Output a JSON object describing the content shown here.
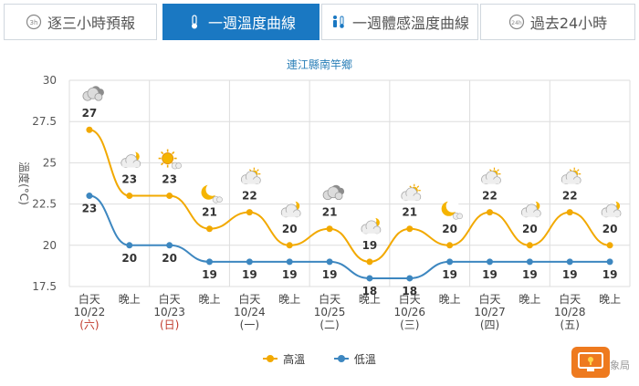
{
  "tabs": [
    {
      "label": "逐三小時預報",
      "icon": "3h-clock-icon",
      "active": false
    },
    {
      "label": "一週溫度曲線",
      "icon": "thermometer-icon",
      "active": true
    },
    {
      "label": "一週體感溫度曲線",
      "icon": "body-temperature-icon",
      "active": false
    },
    {
      "label": "過去24小時",
      "icon": "24h-clock-icon",
      "active": false
    }
  ],
  "location": "連江縣南竿鄉",
  "colors": {
    "high": "#f2a900",
    "low": "#3d87c0",
    "tab_active": "#1a78c2",
    "grid": "#dddddd",
    "sunday": "#c0392b",
    "saturday": "#c0392b"
  },
  "chart_data": {
    "type": "line",
    "ylabel": "溫度(°C)",
    "ylim": [
      17.5,
      30
    ],
    "yticks": [
      "17.5",
      "20",
      "22.5",
      "25",
      "27.5",
      "30"
    ],
    "grid": true,
    "legend_position": "bottom",
    "categories": [
      {
        "period": "白天",
        "date": "10/22",
        "weekday": "(六)"
      },
      {
        "period": "晚上",
        "date": "",
        "weekday": ""
      },
      {
        "period": "白天",
        "date": "10/23",
        "weekday": "(日)"
      },
      {
        "period": "晚上",
        "date": "",
        "weekday": ""
      },
      {
        "period": "白天",
        "date": "10/24",
        "weekday": "(一)"
      },
      {
        "period": "晚上",
        "date": "",
        "weekday": ""
      },
      {
        "period": "白天",
        "date": "10/25",
        "weekday": "(二)"
      },
      {
        "period": "晚上",
        "date": "",
        "weekday": ""
      },
      {
        "period": "白天",
        "date": "10/26",
        "weekday": "(三)"
      },
      {
        "period": "晚上",
        "date": "",
        "weekday": ""
      },
      {
        "period": "白天",
        "date": "10/27",
        "weekday": "(四)"
      },
      {
        "period": "晚上",
        "date": "",
        "weekday": ""
      },
      {
        "period": "白天",
        "date": "10/28",
        "weekday": "(五)"
      },
      {
        "period": "晚上",
        "date": "",
        "weekday": ""
      }
    ],
    "series": [
      {
        "name": "高溫",
        "values": [
          27,
          23,
          23,
          21,
          22,
          20,
          21,
          19,
          21,
          20,
          22,
          20,
          22,
          20
        ]
      },
      {
        "name": "低溫",
        "values": [
          23,
          20,
          20,
          19,
          19,
          19,
          19,
          18,
          18,
          19,
          19,
          19,
          19,
          19
        ]
      }
    ],
    "weather_icons": [
      "cloudy-icon",
      "partly-cloudy-night-icon",
      "sunny-cloudy-icon",
      "moon-cloud-icon",
      "partly-cloudy-day-icon",
      "partly-cloudy-night-icon",
      "cloudy-icon",
      "partly-cloudy-night-icon",
      "partly-cloudy-day-icon",
      "moon-cloud-icon",
      "partly-cloudy-day-icon",
      "partly-cloudy-night-icon",
      "partly-cloudy-day-icon",
      "partly-cloudy-night-icon"
    ]
  },
  "footer": {
    "source_text": "象局"
  }
}
